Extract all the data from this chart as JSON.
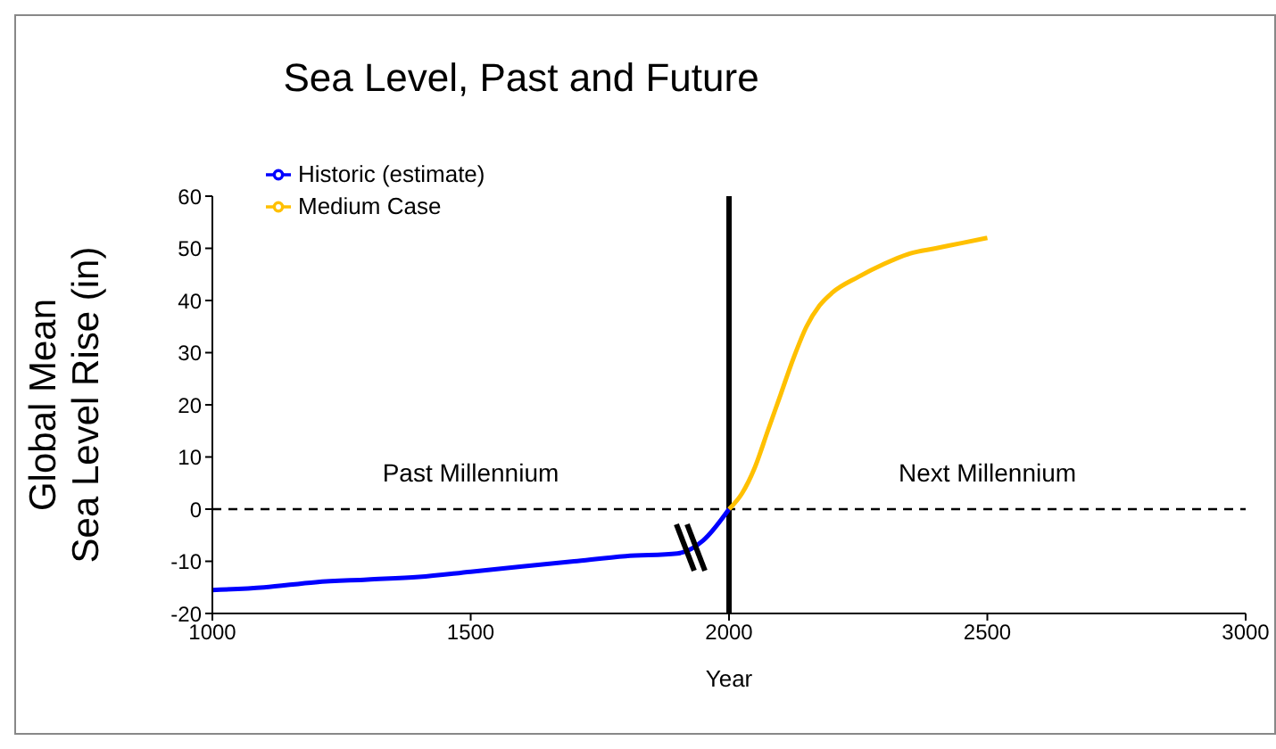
{
  "chart_data": {
    "type": "line",
    "title": "Sea Level, Past and Future",
    "xlabel": "Year",
    "ylabel": "Global Mean\nSea Level Rise (in)",
    "xlim": [
      1000,
      3000
    ],
    "xticks": [
      1000,
      1500,
      2000,
      2500,
      3000
    ],
    "ylim": [
      -20,
      60
    ],
    "yticks": [
      -20,
      -10,
      0,
      10,
      20,
      30,
      40,
      50,
      60
    ],
    "series": [
      {
        "name": "Historic (estimate)",
        "color": "#0000ff",
        "x": [
          1000,
          1100,
          1200,
          1300,
          1400,
          1500,
          1600,
          1700,
          1800,
          1900,
          1950,
          2000
        ],
        "values": [
          -15.5,
          -15,
          -14,
          -13.5,
          -13,
          -12,
          -11,
          -10,
          -9,
          -8.5,
          -6,
          0
        ]
      },
      {
        "name": "Medium Case",
        "color": "#ffc000",
        "x": [
          2000,
          2025,
          2050,
          2075,
          2100,
          2125,
          2150,
          2175,
          2200,
          2250,
          2300,
          2350,
          2400,
          2450,
          2500
        ],
        "values": [
          0,
          3,
          8,
          15,
          22,
          29,
          35,
          39,
          41.5,
          44.5,
          47,
          49,
          50,
          51,
          52
        ]
      }
    ],
    "ref_lines": [
      {
        "axis": "y",
        "value": 0,
        "color": "#000000",
        "line_style": "dashed"
      },
      {
        "axis": "x",
        "value": 2000,
        "color": "#000000",
        "line_style": "solid"
      }
    ],
    "annotations": [
      "Past Millennium",
      "Next Millennium"
    ],
    "legend": "top left",
    "grid": false,
    "marker": "none",
    "line_style": "solid"
  }
}
